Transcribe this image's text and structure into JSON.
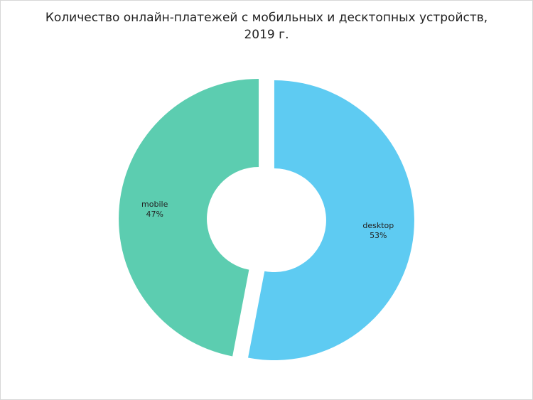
{
  "chart_data": {
    "type": "pie",
    "donut": true,
    "exploded": true,
    "title_lines": [
      "Количество онлайн-платежей с мобильных и десктопных устройств,",
      "2019 г."
    ],
    "slices": [
      {
        "label": "desktop",
        "value": 53,
        "value_label": "53%",
        "color": "#5ecbf2"
      },
      {
        "label": "mobile",
        "value": 47,
        "value_label": "47%",
        "color": "#5ccdb0"
      }
    ],
    "legend": "none"
  }
}
